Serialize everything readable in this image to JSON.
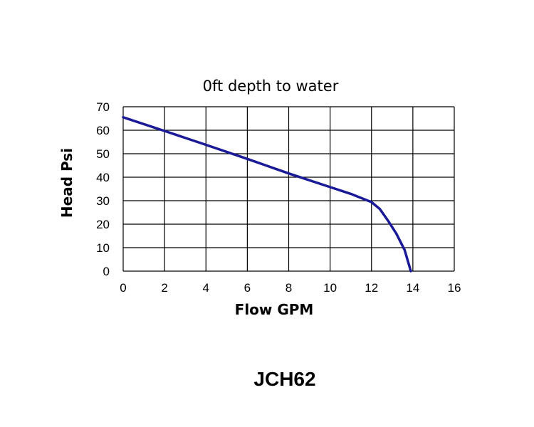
{
  "chart_data": {
    "type": "line",
    "title": "0ft depth to water",
    "xlabel": "Flow GPM",
    "ylabel": "Head Psi",
    "xlim": [
      0,
      16
    ],
    "ylim": [
      0,
      70
    ],
    "xticks": [
      0,
      2,
      4,
      6,
      8,
      10,
      12,
      14,
      16
    ],
    "yticks": [
      0,
      10,
      20,
      30,
      40,
      50,
      60,
      70
    ],
    "grid": true,
    "series": [
      {
        "color": "#1a1a99",
        "x": [
          0,
          2,
          4,
          6,
          8,
          10,
          11,
          12,
          12.4,
          12.8,
          13.2,
          13.6,
          13.8,
          13.9
        ],
        "y": [
          65.5,
          59.7,
          53.8,
          47.8,
          41.6,
          35.8,
          32.9,
          29.4,
          26.5,
          21.5,
          16.0,
          9.0,
          3.0,
          0
        ]
      }
    ]
  },
  "caption": {
    "model": "JCH62"
  }
}
